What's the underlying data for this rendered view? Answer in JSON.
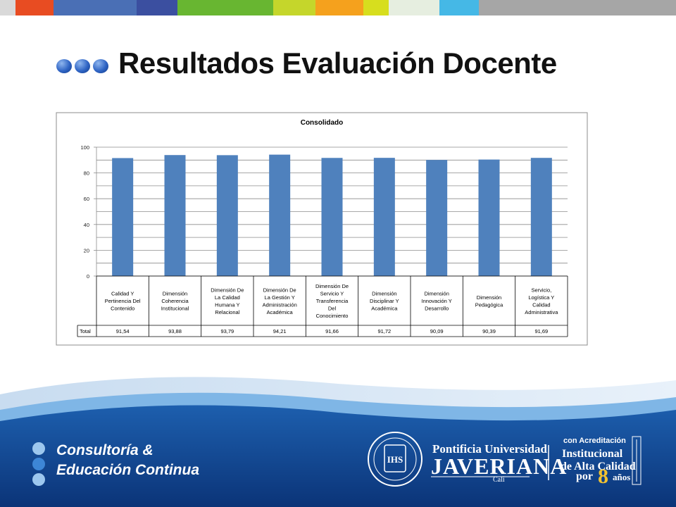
{
  "slide": {
    "title": "Resultados Evaluación Docente",
    "stripe_colors": [
      "#d9d9d9",
      "#e84c22",
      "#4a6fb5",
      "#3b4fa0",
      "#68b631",
      "#c5d62b",
      "#f5a11d",
      "#d7de1e",
      "#e6eee0",
      "#45b8e6",
      "#a6a6a6"
    ]
  },
  "chart_data": {
    "type": "bar",
    "title": "Consolidado",
    "categories": [
      [
        "Calidad Y",
        "Pertinencia Del",
        "Contenido"
      ],
      [
        "Dimensión",
        "Coherencia",
        "Institucional"
      ],
      [
        "Dimensión De",
        "La Calidad",
        "Humana Y",
        "Relacional"
      ],
      [
        "Dimensión De",
        "La Gestión Y",
        "Administración",
        "Académica"
      ],
      [
        "Dimensión De",
        "Servicio Y",
        "Transferencia",
        "Del",
        "Conocimiento"
      ],
      [
        "Dimensión",
        "Disciplinar Y",
        "Académica"
      ],
      [
        "Dimensión",
        "Innovación Y",
        "Desarrollo"
      ],
      [
        "Dimensión",
        "Pedagógica"
      ],
      [
        "Servicio,",
        "Logística Y",
        "Calidad",
        "Administrativa"
      ]
    ],
    "series": [
      {
        "name": "Total",
        "values": [
          91.54,
          93.88,
          93.79,
          94.21,
          91.66,
          91.72,
          90.09,
          90.39,
          91.69
        ],
        "labels": [
          "91,54",
          "93,88",
          "93,79",
          "94,21",
          "91,66",
          "91,72",
          "90,09",
          "90,39",
          "91,69"
        ]
      }
    ],
    "ylim": [
      0,
      100
    ],
    "yticks": [
      0,
      20,
      40,
      60,
      80,
      100
    ],
    "grid": true,
    "bar_color": "#4f81bd",
    "data_table": true
  },
  "footer": {
    "brand_line1": "Consultoría &",
    "brand_line2": "Educación Continua",
    "university_line1": "Pontificia Universidad",
    "university_line2": "JAVERIANA",
    "university_city": "Cali",
    "accreditation_1": "con Acreditación",
    "accreditation_2": "Institucional",
    "accreditation_3": "de Alta Calidad",
    "accreditation_4": "por",
    "accreditation_years": "8",
    "accreditation_5": "años",
    "seal_text": "IHS",
    "colors": {
      "dark_blue": "#0f3f86",
      "mid_blue": "#1a5aa8",
      "light_blue": "#7fb6e6",
      "gold": "#f2c230"
    }
  }
}
